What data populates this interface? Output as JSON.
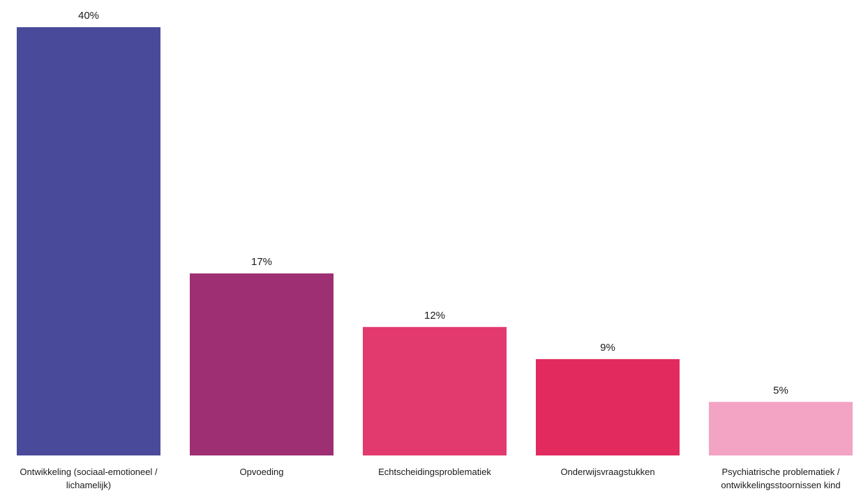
{
  "chart_data": {
    "type": "bar",
    "title": "",
    "xlabel": "",
    "ylabel": "",
    "ylim": [
      0,
      40
    ],
    "grid": false,
    "legend": "none",
    "categories": [
      [
        "Ontwikkeling (sociaal-emotioneel /",
        "lichamelijk)"
      ],
      [
        "Opvoeding"
      ],
      [
        "Echtscheidingsproblematiek"
      ],
      [
        "Onderwijsvraagstukken"
      ],
      [
        "Psychiatrische problematiek /",
        "ontwikkelingsstoornissen kind"
      ]
    ],
    "values": [
      40,
      17,
      12,
      9,
      5
    ],
    "value_labels": [
      "40%",
      "17%",
      "12%",
      "9%",
      "5%"
    ],
    "colors": [
      "#4a4a9a",
      "#9e2f72",
      "#e23a6e",
      "#e32a5f",
      "#f3a3c3"
    ]
  }
}
